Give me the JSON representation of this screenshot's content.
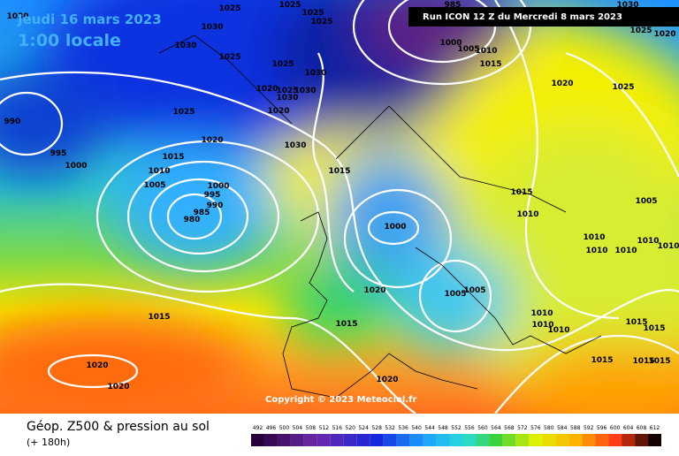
{
  "header": {
    "date": "Jeudi 16 mars 2023",
    "time": "1:00 locale",
    "run": "Run ICON 12 Z du Mercredi 8 mars 2023"
  },
  "footer": {
    "title": "Géop. Z500 & pression au sol",
    "lead": "(+ 180h)",
    "copyright": "Copyright © 2023 Meteociel.fr"
  },
  "colorbar": {
    "ticks": [
      492,
      496,
      500,
      504,
      508,
      512,
      516,
      520,
      524,
      528,
      532,
      536,
      540,
      544,
      548,
      552,
      556,
      560,
      564,
      568,
      572,
      576,
      580,
      584,
      588,
      592,
      596,
      600,
      604,
      608,
      612
    ]
  },
  "isobar_labels": [
    "1030",
    "1030",
    "1025",
    "1025",
    "1025",
    "1025",
    "985",
    "1030",
    "1030",
    "1025",
    "1025",
    "1030",
    "1020",
    "1025",
    "1030",
    "1030",
    "1020",
    "1025",
    "1000",
    "1005",
    "1010",
    "1015",
    "1020",
    "1025",
    "1025",
    "1020",
    "990",
    "995",
    "1000",
    "1020",
    "1030",
    "1015",
    "1010",
    "1005",
    "1000",
    "995",
    "990",
    "985",
    "980",
    "1015",
    "1000",
    "1015",
    "1010",
    "1005",
    "1010",
    "1010",
    "1010",
    "1010",
    "1010",
    "1020",
    "1005",
    "1005",
    "1015",
    "1015",
    "1010",
    "1010",
    "1010",
    "1015",
    "1015",
    "1015",
    "1015",
    "1015",
    "1020",
    "1020",
    "1020"
  ]
}
